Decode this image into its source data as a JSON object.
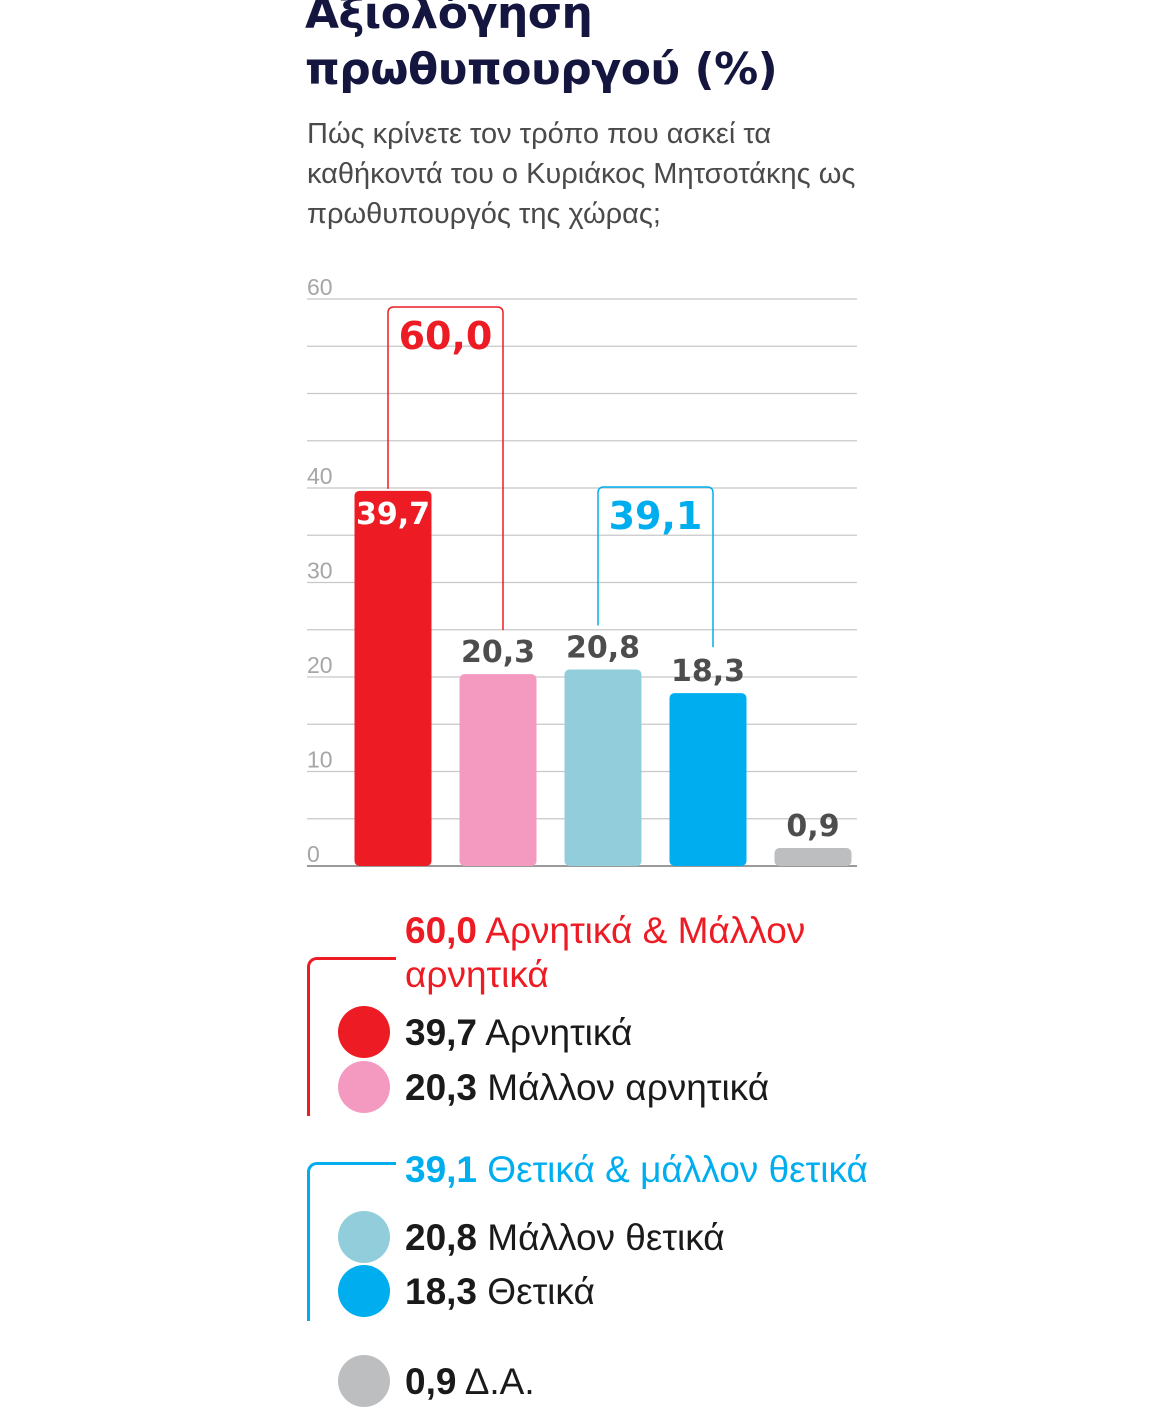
{
  "header": {
    "title_line1": "Αξιολόγηση",
    "title_line2": "πρωθυπουργού (%)",
    "subtitle": "Πώς κρίνετε τον τρόπο που ασκεί τα καθήκοντά του ο Κυριάκος Μητσοτάκης ως πρωθυπουργός της χώρας;"
  },
  "chart_data": {
    "type": "bar",
    "title": "Αξιολόγηση πρωθυπουργού (%)",
    "xlabel": "",
    "ylabel": "",
    "ylim": [
      0,
      60
    ],
    "y_ticks": [
      0,
      10,
      20,
      30,
      40,
      60
    ],
    "grid": true,
    "categories": [
      "Αρνητικά",
      "Μάλλον αρνητικά",
      "Μάλλον θετικά",
      "Θετικά",
      "Δ.Α."
    ],
    "values": [
      39.7,
      20.3,
      20.8,
      18.3,
      0.9
    ],
    "value_labels": [
      "39,7",
      "20,3",
      "20,8",
      "18,3",
      "0,9"
    ],
    "colors": [
      "#ed1c24",
      "#f49ac1",
      "#92cddc",
      "#00aeef",
      "#bcbec0"
    ],
    "groups": [
      {
        "label": "60,0",
        "value": 60.0,
        "members": [
          0,
          1
        ],
        "color": "#ed1c24"
      },
      {
        "label": "39,1",
        "value": 39.1,
        "members": [
          2,
          3
        ],
        "color": "#00aeef"
      }
    ]
  },
  "legend": {
    "group_negative": {
      "value": "60,0",
      "label_line1": "Αρνητικά & Μάλλον",
      "label_line2": "αρνητικά",
      "color": "#ed1c24"
    },
    "group_positive": {
      "value": "39,1",
      "label": "Θετικά & μάλλον θετικά",
      "color": "#00aeef"
    },
    "items": [
      {
        "value": "39,7",
        "label": "Αρνητικά",
        "color": "#ed1c24"
      },
      {
        "value": "20,3",
        "label": "Μάλλον αρνητικά",
        "color": "#f49ac1"
      },
      {
        "value": "20,8",
        "label": "Μάλλον θετικά",
        "color": "#92cddc"
      },
      {
        "value": "18,3",
        "label": "Θετικά",
        "color": "#00aeef"
      },
      {
        "value": "0,9",
        "label": "Δ.Α.",
        "color": "#bcbec0"
      }
    ]
  }
}
